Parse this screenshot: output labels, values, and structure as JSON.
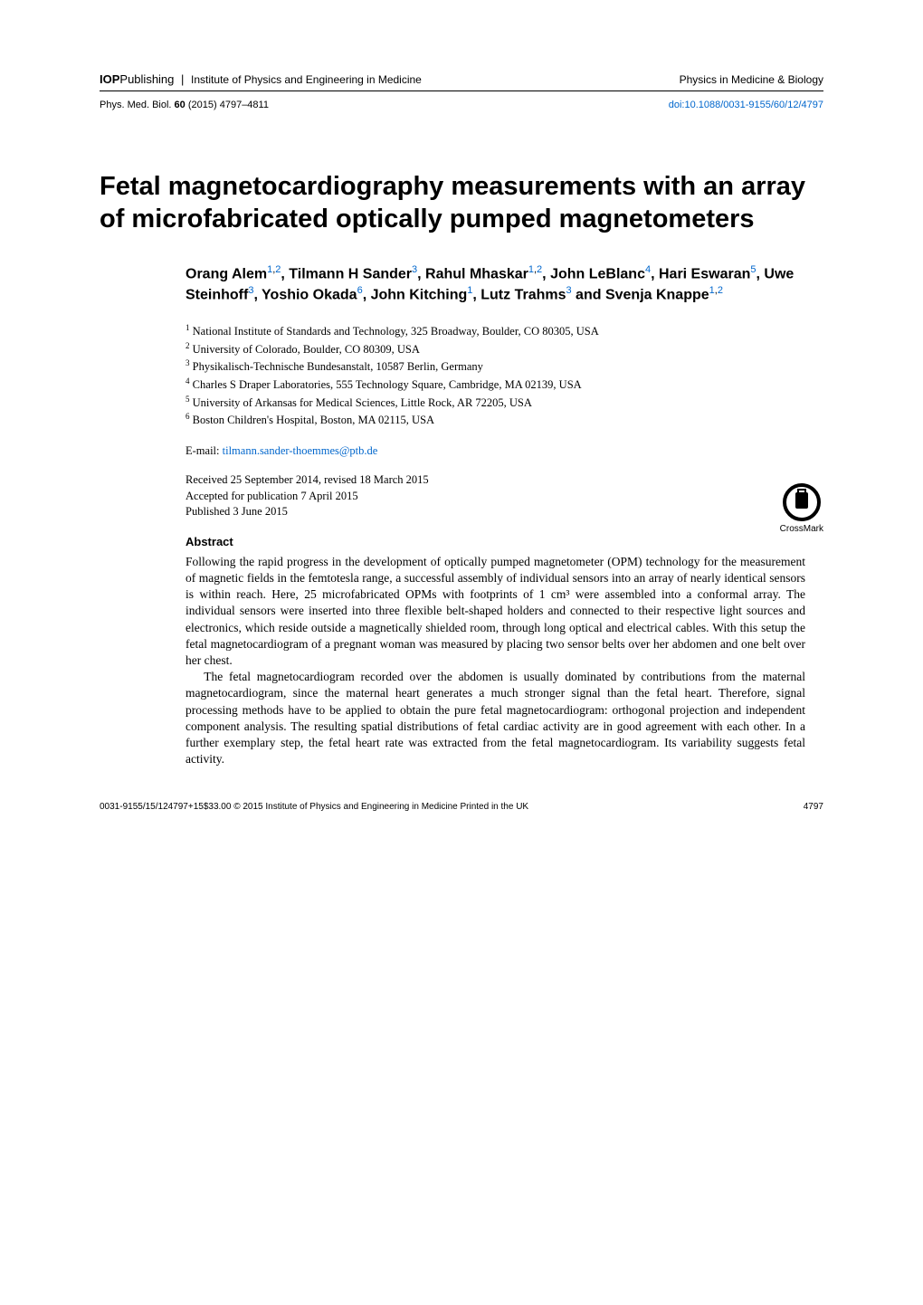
{
  "header": {
    "publisher": "IOP",
    "publisher_suffix": "Publishing",
    "publisher_sub": "Institute of Physics and Engineering in Medicine",
    "journal": "Physics in Medicine & Biology"
  },
  "citation": {
    "journal_abbrev": "Phys. Med. Biol.",
    "volume": "60",
    "year": "(2015)",
    "pages": "4797–4811",
    "doi_prefix": "doi:",
    "doi": "10.1088/0031-9155/60/12/4797"
  },
  "title": "Fetal magnetocardiography measurements with an array of microfabricated optically pumped magnetometers",
  "authors_html": "Orang Alem<sup><a>1</a>,<a>2</a></sup>, Tilmann H Sander<sup><a>3</a></sup>, Rahul Mhaskar<sup><a>1</a>,<a>2</a></sup>, John LeBlanc<sup><a>4</a></sup>, Hari Eswaran<sup><a>5</a></sup>, Uwe Steinhoff<sup><a>3</a></sup>, Yoshio Okada<sup><a>6</a></sup>, John Kitching<sup><a>1</a></sup>, Lutz Trahms<sup><a>3</a></sup> and Svenja Knappe<sup><a>1</a>,<a>2</a></sup>",
  "affiliations": [
    {
      "n": "1",
      "text": "National Institute of Standards and Technology, 325 Broadway, Boulder, CO 80305, USA"
    },
    {
      "n": "2",
      "text": "University of Colorado, Boulder, CO 80309, USA"
    },
    {
      "n": "3",
      "text": "Physikalisch-Technische Bundesanstalt, 10587 Berlin, Germany"
    },
    {
      "n": "4",
      "text": "Charles S Draper Laboratories, 555 Technology Square, Cambridge, MA 02139, USA"
    },
    {
      "n": "5",
      "text": "University of Arkansas for Medical Sciences, Little Rock, AR 72205, USA"
    },
    {
      "n": "6",
      "text": "Boston Children's Hospital, Boston, MA 02115, USA"
    }
  ],
  "email": {
    "label": "E-mail:",
    "address": "tilmann.sander-thoemmes@ptb.de"
  },
  "dates": {
    "received": "Received 25 September 2014, revised 18 March 2015",
    "accepted": "Accepted for publication 7 April 2015",
    "published": "Published 3 June 2015"
  },
  "crossmark_label": "CrossMark",
  "abstract": {
    "heading": "Abstract",
    "p1": "Following the rapid progress in the development of optically pumped magnetometer (OPM) technology for the measurement of magnetic fields in the femtotesla range, a successful assembly of individual sensors into an array of nearly identical sensors is within reach. Here, 25 microfabricated OPMs with footprints of 1 cm³ were assembled into a conformal array. The individual sensors were inserted into three flexible belt-shaped holders and connected to their respective light sources and electronics, which reside outside a magnetically shielded room, through long optical and electrical cables. With this setup the fetal magnetocardiogram of a pregnant woman was measured by placing two sensor belts over her abdomen and one belt over her chest.",
    "p2": "The fetal magnetocardiogram recorded over the abdomen is usually dominated by contributions from the maternal magnetocardiogram, since the maternal heart generates a much stronger signal than the fetal heart. Therefore, signal processing methods have to be applied to obtain the pure fetal magnetocardiogram: orthogonal projection and independent component analysis. The resulting spatial distributions of fetal cardiac activity are in good agreement with each other. In a further exemplary step, the fetal heart rate was extracted from the fetal magnetocardiogram. Its variability suggests fetal activity."
  },
  "footer": {
    "left": "0031-9155/15/124797+15$33.00    © 2015 Institute of Physics and Engineering in Medicine    Printed in the UK",
    "page": "4797"
  },
  "colors": {
    "link": "#0066cc",
    "text": "#000000",
    "bg": "#ffffff"
  }
}
